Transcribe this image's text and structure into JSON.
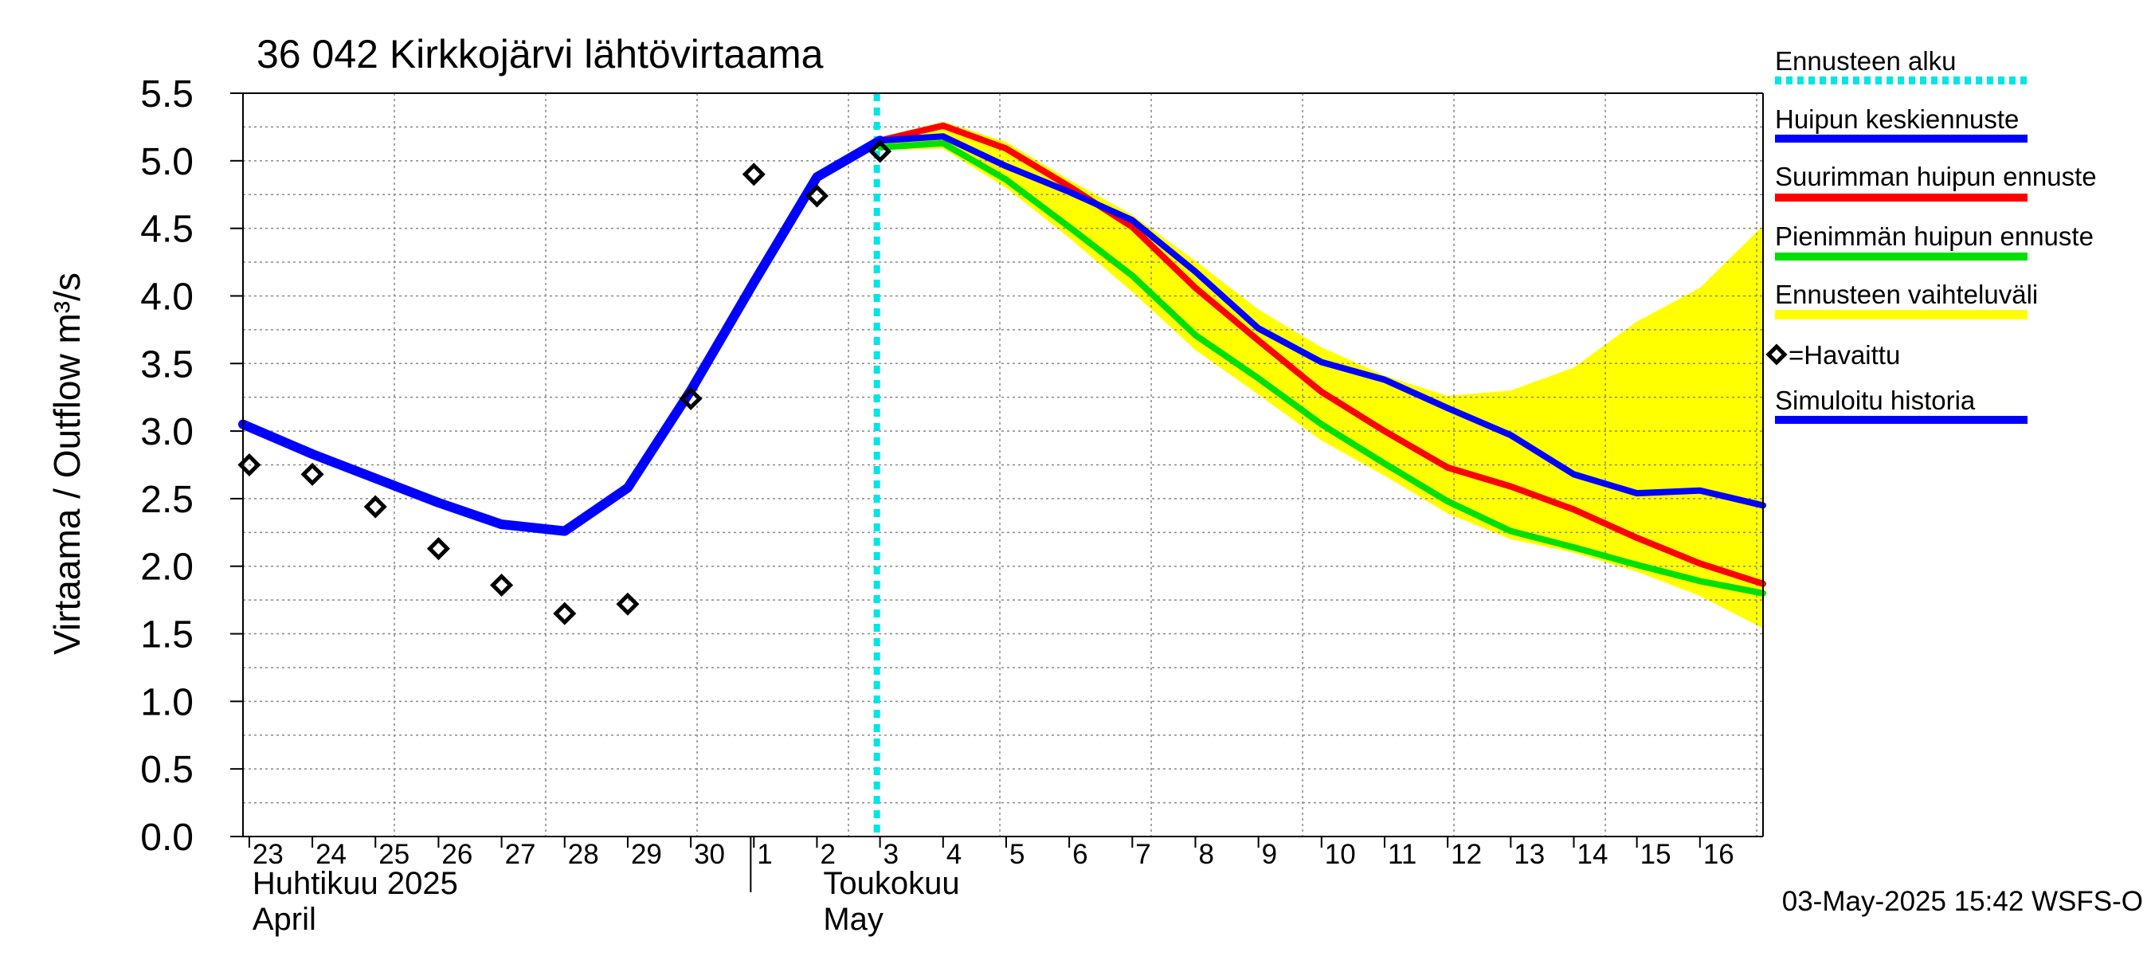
{
  "chart_data": {
    "type": "line",
    "title": "36 042 Kirkkojärvi lähtövirtaama",
    "ylabel": "Virtaama / Outflow    m³/s",
    "ylim": [
      0,
      5.5
    ],
    "yticks": [
      "0.0",
      "0.5",
      "1.0",
      "1.5",
      "2.0",
      "2.5",
      "3.0",
      "3.5",
      "4.0",
      "4.5",
      "5.0",
      "5.5"
    ],
    "xlim": [
      -0.1,
      24
    ],
    "xticks": [
      "23",
      "24",
      "25",
      "26",
      "27",
      "28",
      "29",
      "30",
      "1",
      "2",
      "3",
      "4",
      "5",
      "6",
      "7",
      "8",
      "9",
      "10",
      "11",
      "12",
      "13",
      "14",
      "15",
      "16"
    ],
    "month_labels": [
      {
        "fi": "Huhtikuu  2025",
        "en": "April"
      },
      {
        "fi": "Toukokuu",
        "en": "May"
      }
    ],
    "forecast_start_x": 9.95,
    "legend": [
      {
        "label": "Ennusteen alku",
        "color": "#00e5e5",
        "style": "dotted"
      },
      {
        "label": "Huipun keskiennuste",
        "color": "#0000ff",
        "style": "solid"
      },
      {
        "label": "Suurimman huipun ennuste",
        "color": "#ff0000",
        "style": "solid"
      },
      {
        "label": "Pienimmän huipun ennuste",
        "color": "#00e000",
        "style": "solid"
      },
      {
        "label": "Ennusteen vaihteluväli",
        "color": "#ffff00",
        "style": "band"
      },
      {
        "label": "=Havaittu",
        "color": "#000000",
        "style": "marker"
      },
      {
        "label": "Simuloitu historia",
        "color": "#0000ff",
        "style": "solid"
      }
    ],
    "series": {
      "simulated_history": {
        "x": [
          -0.1,
          1,
          2,
          3,
          4,
          5,
          6,
          7,
          8,
          9,
          10
        ],
        "y": [
          3.05,
          2.83,
          2.65,
          2.47,
          2.31,
          2.26,
          2.58,
          3.3,
          4.1,
          4.88,
          5.15
        ]
      },
      "mean_forecast": {
        "x": [
          10,
          11,
          12,
          13,
          14,
          15,
          16,
          17,
          18,
          19,
          20,
          21,
          22,
          23,
          24
        ],
        "y": [
          5.15,
          5.18,
          4.96,
          4.77,
          4.56,
          4.18,
          3.76,
          3.51,
          3.38,
          3.17,
          2.97,
          2.68,
          2.54,
          2.56,
          2.45
        ]
      },
      "max_forecast": {
        "x": [
          10,
          11,
          12,
          13,
          14,
          15,
          16,
          17,
          18,
          19,
          20,
          21,
          22,
          23,
          24
        ],
        "y": [
          5.15,
          5.26,
          5.09,
          4.81,
          4.51,
          4.06,
          3.67,
          3.29,
          3.0,
          2.73,
          2.59,
          2.42,
          2.21,
          2.02,
          1.87
        ]
      },
      "min_forecast": {
        "x": [
          10,
          11,
          12,
          13,
          14,
          15,
          16,
          17,
          18,
          19,
          20,
          21,
          22,
          23,
          24
        ],
        "y": [
          5.1,
          5.13,
          4.86,
          4.51,
          4.15,
          3.71,
          3.39,
          3.05,
          2.76,
          2.48,
          2.26,
          2.14,
          2.01,
          1.89,
          1.8
        ]
      },
      "forecast_range": {
        "x": [
          10,
          11,
          12,
          13,
          14,
          15,
          16,
          17,
          18,
          19,
          20,
          21,
          22,
          23,
          24
        ],
        "upper": [
          5.17,
          5.29,
          5.14,
          4.86,
          4.6,
          4.26,
          3.9,
          3.62,
          3.41,
          3.26,
          3.3,
          3.47,
          3.81,
          4.06,
          4.52
        ],
        "lower": [
          5.08,
          5.09,
          4.8,
          4.43,
          4.03,
          3.6,
          3.27,
          2.93,
          2.67,
          2.39,
          2.2,
          2.1,
          1.96,
          1.78,
          1.54
        ]
      },
      "observed": {
        "x": [
          0,
          1,
          2,
          3,
          4,
          5,
          6,
          7,
          8,
          9,
          10
        ],
        "y": [
          2.75,
          2.68,
          2.44,
          2.13,
          1.86,
          1.65,
          1.72,
          3.24,
          4.9,
          4.74,
          5.07
        ]
      }
    },
    "colors": {
      "simulated": "#0000ff",
      "mean": "#0000ff",
      "max": "#ff0000",
      "min": "#00e000",
      "range": "#ffff00",
      "forecast_start": "#00e5e5",
      "observed": "#000000",
      "grid": "#888888"
    }
  },
  "footer": {
    "timestamp": "03-May-2025 15:42 WSFS-O"
  }
}
